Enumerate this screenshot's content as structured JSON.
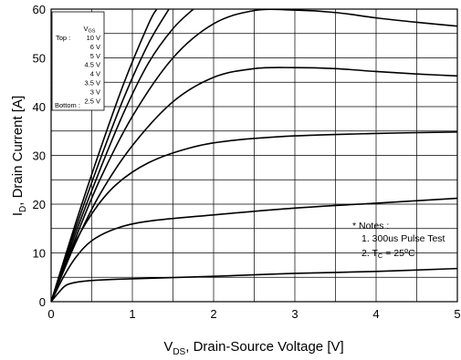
{
  "chart_data": {
    "type": "line",
    "xlabel_main": "V",
    "xlabel_sub": "DS",
    "xlabel_rest": ", Drain-Source Voltage [V]",
    "ylabel_main": "I",
    "ylabel_sub": "D",
    "ylabel_rest": ", Drain Current [A]",
    "xlim": [
      0,
      5
    ],
    "ylim": [
      0,
      60
    ],
    "x_ticks": [
      "0",
      "1",
      "2",
      "3",
      "4",
      "5"
    ],
    "y_ticks": [
      "0",
      "10",
      "20",
      "30",
      "40",
      "50",
      "60"
    ],
    "grid": true,
    "legend": {
      "header_main": "V",
      "header_sub": "GS",
      "top_label": "Top :",
      "bottom_label": "Bottom :",
      "entries": [
        "10 V",
        "6 V",
        "5 V",
        "4.5 V",
        "4 V",
        "3.5 V",
        "3 V",
        "2.5 V"
      ]
    },
    "notes": {
      "title": "* Notes :",
      "line1": "1. 300us Pulse Test",
      "line2_pre": "2. T",
      "line2_sub": "C",
      "line2_mid": " = 25",
      "line2_sup": "o",
      "line2_post": "C"
    },
    "series": [
      {
        "label": "10 V",
        "points": [
          [
            0,
            0
          ],
          [
            0.3,
            16
          ],
          [
            0.6,
            31
          ],
          [
            0.9,
            45
          ],
          [
            1.2,
            57
          ],
          [
            1.3,
            60
          ]
        ]
      },
      {
        "label": "6 V",
        "points": [
          [
            0,
            0
          ],
          [
            0.3,
            15
          ],
          [
            0.6,
            29
          ],
          [
            0.9,
            42
          ],
          [
            1.2,
            53
          ],
          [
            1.45,
            60
          ]
        ]
      },
      {
        "label": "5 V",
        "points": [
          [
            0,
            0
          ],
          [
            0.3,
            14
          ],
          [
            0.6,
            27
          ],
          [
            0.9,
            39
          ],
          [
            1.2,
            49
          ],
          [
            1.5,
            56
          ],
          [
            1.75,
            60
          ]
        ]
      },
      {
        "label": "4.5 V",
        "points": [
          [
            0,
            0
          ],
          [
            0.3,
            13
          ],
          [
            0.6,
            25
          ],
          [
            1,
            38
          ],
          [
            1.5,
            50
          ],
          [
            2,
            57
          ],
          [
            2.5,
            59.7
          ],
          [
            3,
            59.8
          ],
          [
            3.5,
            59.3
          ],
          [
            4,
            58.2
          ],
          [
            4.5,
            57.3
          ],
          [
            5,
            56.5
          ]
        ]
      },
      {
        "label": "4 V",
        "points": [
          [
            0,
            0
          ],
          [
            0.3,
            12
          ],
          [
            0.6,
            22
          ],
          [
            1,
            32
          ],
          [
            1.5,
            41
          ],
          [
            2,
            46
          ],
          [
            2.5,
            47.8
          ],
          [
            3,
            48
          ],
          [
            3.5,
            47.8
          ],
          [
            4,
            47.2
          ],
          [
            4.5,
            46.7
          ],
          [
            5,
            46.3
          ]
        ]
      },
      {
        "label": "3.5 V",
        "points": [
          [
            0,
            0
          ],
          [
            0.2,
            9
          ],
          [
            0.5,
            18
          ],
          [
            0.8,
            24
          ],
          [
            1.2,
            28.5
          ],
          [
            1.7,
            31.5
          ],
          [
            2.2,
            33
          ],
          [
            3,
            34
          ],
          [
            4,
            34.5
          ],
          [
            5,
            34.8
          ]
        ]
      },
      {
        "label": "3 V",
        "points": [
          [
            0,
            0
          ],
          [
            0.15,
            5
          ],
          [
            0.3,
            9
          ],
          [
            0.5,
            12.5
          ],
          [
            0.8,
            15
          ],
          [
            1.2,
            16.5
          ],
          [
            2,
            17.8
          ],
          [
            3,
            19.2
          ],
          [
            4,
            20.2
          ],
          [
            5,
            21.2
          ]
        ]
      },
      {
        "label": "2.5 V",
        "points": [
          [
            0,
            0
          ],
          [
            0.1,
            2
          ],
          [
            0.2,
            3.5
          ],
          [
            0.4,
            4.2
          ],
          [
            0.8,
            4.6
          ],
          [
            2,
            5.2
          ],
          [
            3,
            5.8
          ],
          [
            4,
            6.2
          ],
          [
            5,
            6.8
          ]
        ]
      }
    ]
  }
}
